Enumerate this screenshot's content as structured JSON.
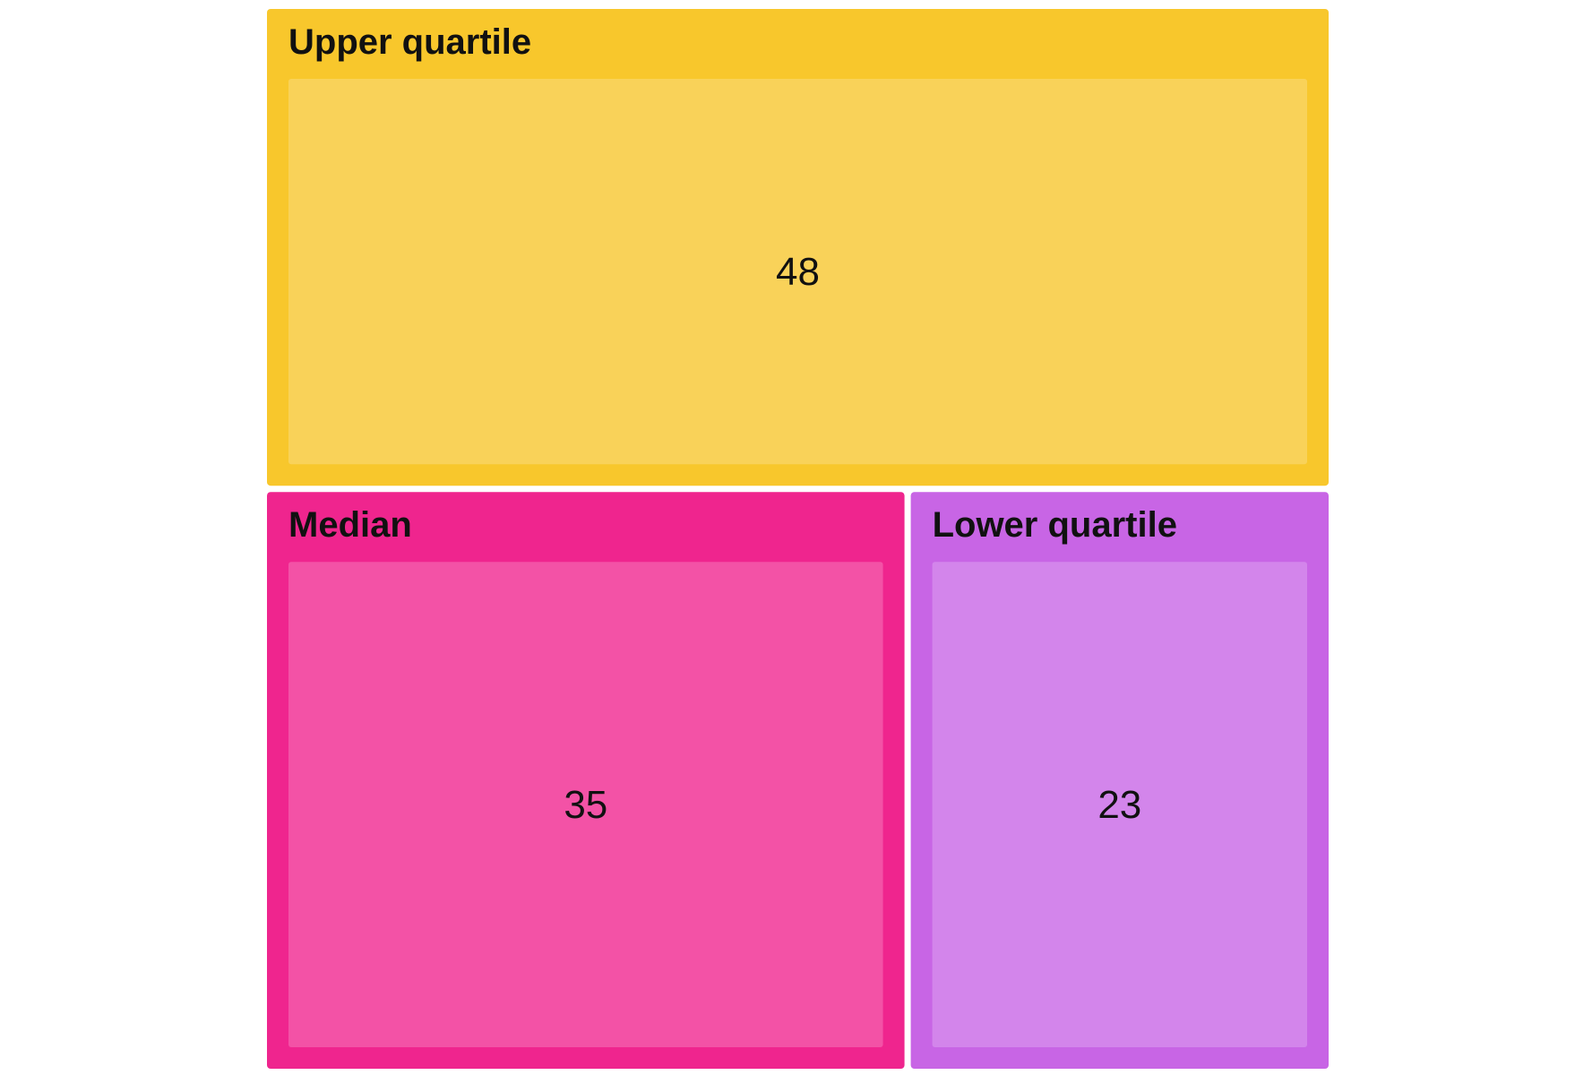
{
  "chart_data": {
    "type": "treemap",
    "title": "",
    "nodes": [
      {
        "name": "Upper quartile",
        "value": 48,
        "color": "#F8C72C",
        "inner_color": "#F9D259"
      },
      {
        "name": "Median",
        "value": 35,
        "color": "#EF258E",
        "inner_color": "#F352A6"
      },
      {
        "name": "Lower quartile",
        "value": 23,
        "color": "#C865E5",
        "inner_color": "#D385EB"
      }
    ]
  }
}
